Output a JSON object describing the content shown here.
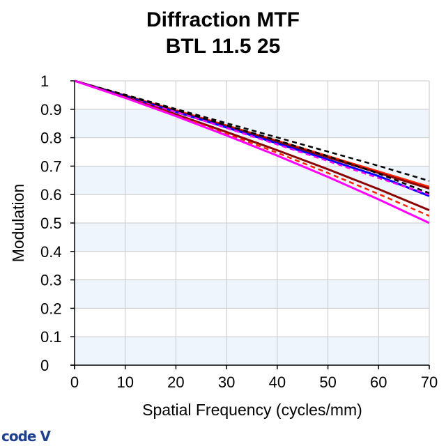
{
  "title": [
    "Diffraction MTF",
    "BTL 11.5 25"
  ],
  "logo_text": "code V",
  "colors": {
    "band": "#eef5fc",
    "grid": "#c8c8c8",
    "axis": "#000000"
  },
  "chart_data": {
    "type": "line",
    "title": "Diffraction MTF BTL 11.5 25",
    "xlabel": "Spatial Frequency (cycles/mm)",
    "ylabel": "Modulation",
    "xlim": [
      0,
      70
    ],
    "ylim": [
      0,
      1
    ],
    "xticks": [
      0,
      10,
      20,
      30,
      40,
      50,
      60,
      70
    ],
    "yticks": [
      0,
      0.1,
      0.2,
      0.3,
      0.4,
      0.5,
      0.6,
      0.7,
      0.8,
      0.9,
      1
    ],
    "ytick_labels": [
      "0",
      "0.1",
      "0.2",
      "0.3",
      "0.4",
      "0.5",
      "0.6",
      "0.7",
      "0.8",
      "0.9",
      "1"
    ],
    "xtick_labels": [
      "0",
      "10",
      "20",
      "30",
      "40",
      "50",
      "60",
      "70"
    ],
    "series": [
      {
        "name": "black dashed",
        "color": "#000000",
        "dash": true,
        "x": [
          0,
          10,
          20,
          30,
          40,
          50,
          60,
          70
        ],
        "y": [
          1.0,
          0.951,
          0.901,
          0.851,
          0.801,
          0.751,
          0.701,
          0.648
        ]
      },
      {
        "name": "red solid",
        "color": "#ff2200",
        "dash": false,
        "x": [
          0,
          10,
          20,
          30,
          40,
          50,
          60,
          70
        ],
        "y": [
          1.0,
          0.948,
          0.896,
          0.843,
          0.789,
          0.735,
          0.681,
          0.627
        ]
      },
      {
        "name": "dark red solid",
        "color": "#8b0000",
        "dash": false,
        "x": [
          0,
          10,
          20,
          30,
          40,
          50,
          60,
          70
        ],
        "y": [
          1.0,
          0.947,
          0.893,
          0.839,
          0.785,
          0.731,
          0.676,
          0.621
        ]
      },
      {
        "name": "blue solid",
        "color": "#0000ff",
        "dash": false,
        "x": [
          0,
          10,
          20,
          30,
          40,
          50,
          60,
          70
        ],
        "y": [
          1.0,
          0.946,
          0.891,
          0.836,
          0.78,
          0.723,
          0.665,
          0.595
        ]
      },
      {
        "name": "magenta dashed",
        "color": "#ff00ff",
        "dash": true,
        "x": [
          0,
          10,
          20,
          30,
          40,
          50,
          60,
          70
        ],
        "y": [
          1.0,
          0.946,
          0.891,
          0.834,
          0.776,
          0.718,
          0.658,
          0.6
        ]
      },
      {
        "name": "black dashed 2",
        "color": "#000000",
        "dash": true,
        "x": [
          0,
          10,
          20,
          30,
          40,
          50,
          60,
          70
        ],
        "y": [
          1.0,
          0.949,
          0.897,
          0.844,
          0.791,
          0.735,
          0.674,
          0.605
        ]
      },
      {
        "name": "dark red solid 2",
        "color": "#8b0000",
        "dash": false,
        "x": [
          0,
          10,
          20,
          30,
          40,
          50,
          60,
          70
        ],
        "y": [
          1.0,
          0.942,
          0.882,
          0.82,
          0.756,
          0.689,
          0.619,
          0.545
        ]
      },
      {
        "name": "red dashed",
        "color": "#ff2200",
        "dash": true,
        "x": [
          0,
          10,
          20,
          30,
          40,
          50,
          60,
          70
        ],
        "y": [
          1.0,
          0.941,
          0.879,
          0.814,
          0.747,
          0.676,
          0.602,
          0.525
        ]
      },
      {
        "name": "magenta solid",
        "color": "#ff00ff",
        "dash": false,
        "x": [
          0,
          10,
          20,
          30,
          40,
          50,
          60,
          70
        ],
        "y": [
          1.0,
          0.94,
          0.876,
          0.808,
          0.737,
          0.662,
          0.583,
          0.5
        ]
      }
    ]
  }
}
